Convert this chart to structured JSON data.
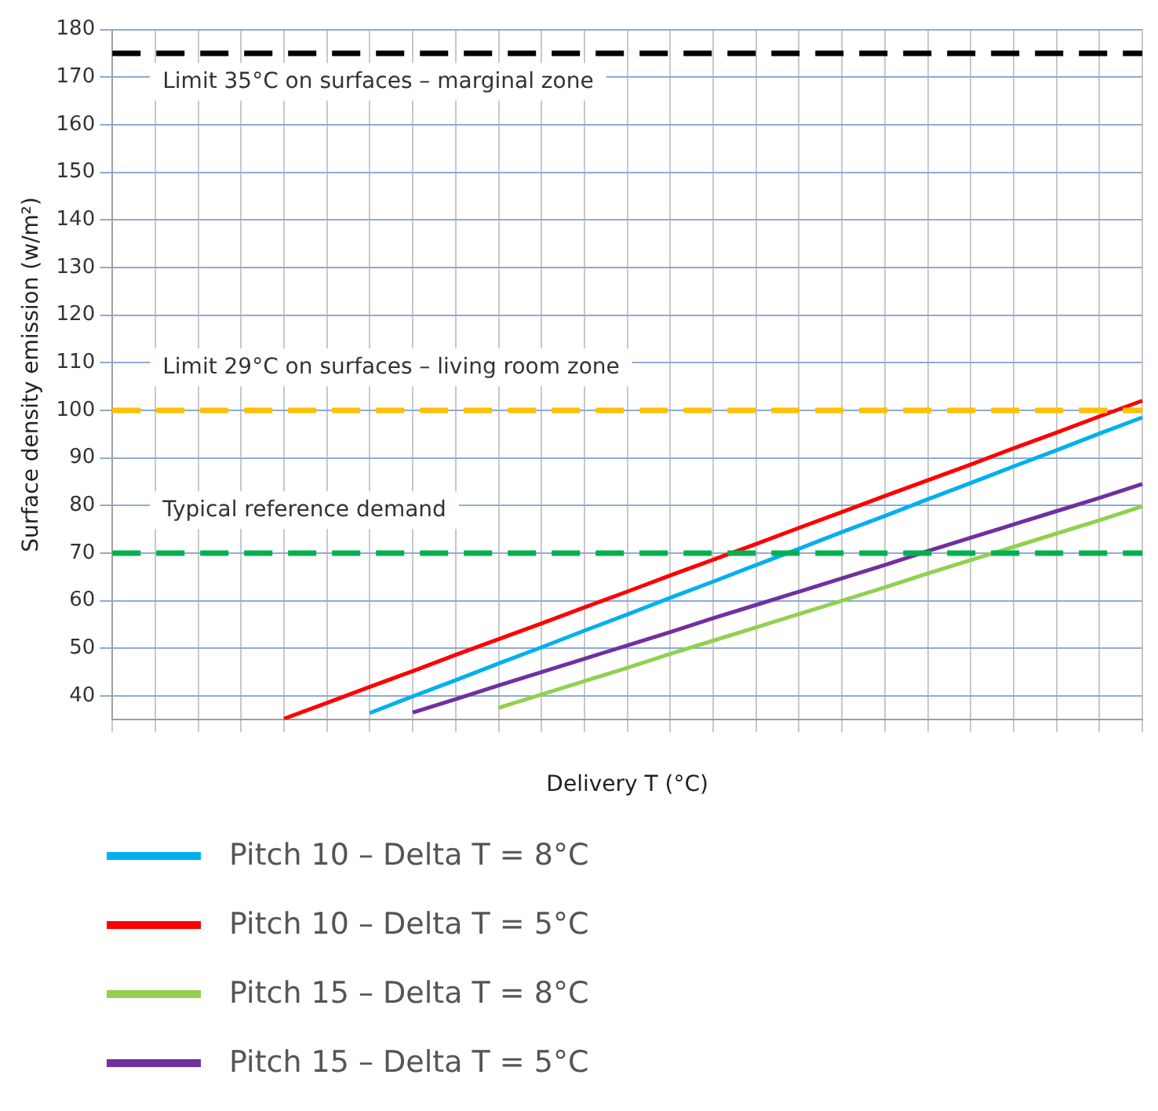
{
  "chart_data": {
    "type": "line",
    "xlabel": "Delivery T (°C)",
    "ylabel": "Surface density emission (w/m²)",
    "categories": [
      null,
      null,
      null,
      null,
      null,
      null,
      null,
      null,
      null,
      null,
      null,
      null,
      null,
      null,
      null,
      null,
      null,
      null,
      null,
      null,
      null,
      null,
      null,
      null,
      null
    ],
    "ylim": [
      35,
      180
    ],
    "yticks": [
      40,
      50,
      60,
      70,
      80,
      90,
      100,
      110,
      120,
      130,
      140,
      150,
      160,
      170,
      180
    ],
    "grid": true,
    "legend": "bottom",
    "marker": "none",
    "line_style": "solid",
    "series": [
      {
        "name": "Pitch 10 – Delta T = 8°C",
        "color": "#00b0f0",
        "values": [
          null,
          null,
          null,
          null,
          null,
          null,
          36.4,
          39.9,
          43.3,
          46.8,
          50.2,
          53.7,
          57.1,
          60.6,
          64.0,
          67.5,
          70.9,
          74.4,
          77.8,
          81.3,
          84.7,
          88.2,
          91.6,
          95.1,
          98.5
        ]
      },
      {
        "name": "Pitch 10 – Delta T = 5°C",
        "color": "#ff0000",
        "values": [
          null,
          null,
          null,
          null,
          35.2,
          38.5,
          41.9,
          45.2,
          48.6,
          51.9,
          55.2,
          58.6,
          61.9,
          65.3,
          68.6,
          71.9,
          75.3,
          78.6,
          82.0,
          85.3,
          88.6,
          92.0,
          95.3,
          98.7,
          102.0
        ]
      },
      {
        "name": "Pitch 15 – Delta T = 8°C",
        "color": "#92d050",
        "values": [
          null,
          null,
          null,
          null,
          null,
          null,
          null,
          null,
          null,
          37.5,
          40.3,
          43.1,
          45.9,
          48.8,
          51.6,
          54.4,
          57.2,
          60.0,
          62.8,
          65.7,
          68.5,
          71.3,
          74.1,
          76.9,
          79.8
        ]
      },
      {
        "name": "Pitch 15 – Delta T = 5°C",
        "color": "#7030a0",
        "values": [
          null,
          null,
          null,
          null,
          null,
          null,
          null,
          36.5,
          39.3,
          42.2,
          45.0,
          47.8,
          50.6,
          53.4,
          56.3,
          59.1,
          61.9,
          64.7,
          67.5,
          70.4,
          73.2,
          76.0,
          78.8,
          81.6,
          84.5
        ]
      }
    ],
    "ref_lines": [
      {
        "axis": "y",
        "value": 175,
        "label": "Limit 35°C on surfaces – marginal zone",
        "color": "#000000",
        "line_style": "dashed"
      },
      {
        "axis": "y",
        "value": 100,
        "label": "Limit 29°C on surfaces – living room zone",
        "color": "#ffc000",
        "line_style": "dashed"
      },
      {
        "axis": "y",
        "value": 70,
        "label": "Typical reference demand",
        "color": "#00b050",
        "line_style": "dashed"
      }
    ]
  }
}
